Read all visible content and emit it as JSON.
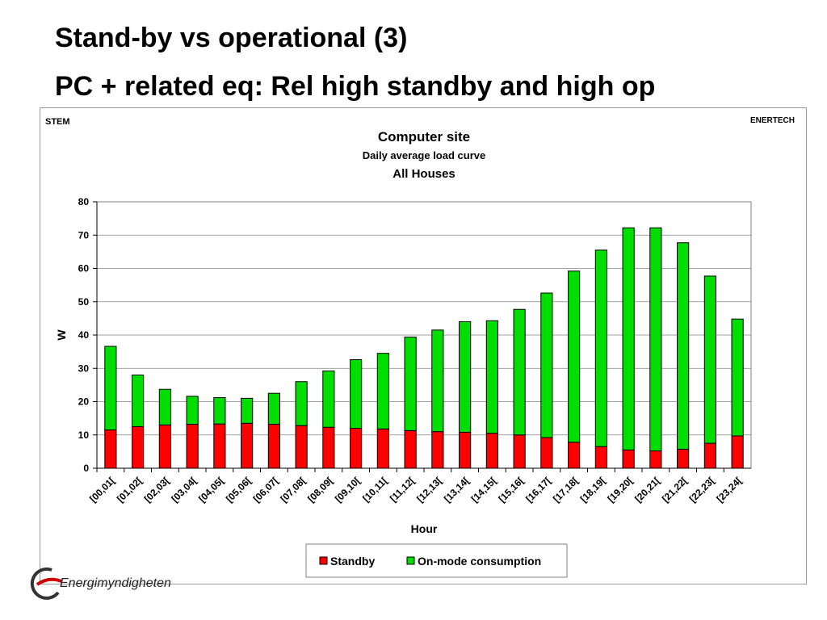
{
  "slide": {
    "title_line1": "Stand-by vs operational (3)",
    "title_line2": "PC + related eq: Rel high standby and high op"
  },
  "logo": {
    "text": "Energimyndigheten"
  },
  "chart_data": {
    "type": "bar",
    "stacked": true,
    "corner_left": "STEM",
    "corner_right": "ENERTECH",
    "title": "Computer site",
    "subtitle": "Daily average load curve",
    "subtitle2": "All Houses",
    "xlabel": "Hour",
    "ylabel": "W",
    "ylim": [
      0,
      80
    ],
    "yticks": [
      0,
      10,
      20,
      30,
      40,
      50,
      60,
      70,
      80
    ],
    "grid": true,
    "legend_position": "bottom",
    "categories": [
      "[00,01[",
      "[01,02[",
      "[02,03[",
      "[03,04[",
      "[04,05[",
      "[05,06[",
      "[06,07[",
      "[07,08[",
      "[08,09[",
      "[09,10[",
      "[10,11[",
      "[11,12[",
      "[12,13[",
      "[13,14[",
      "[14,15[",
      "[15,16[",
      "[16,17[",
      "[17,18[",
      "[18,19[",
      "[19,20[",
      "[20,21[",
      "[21,22[",
      "[22,23[",
      "[23,24["
    ],
    "series": [
      {
        "name": "Standby",
        "color": "#ff0000",
        "values": [
          11.5,
          12.5,
          13,
          13.2,
          13.3,
          13.5,
          13.2,
          12.8,
          12.3,
          12,
          11.8,
          11.3,
          11,
          10.8,
          10.5,
          10,
          9.2,
          7.8,
          6.5,
          5.5,
          5.2,
          5.7,
          7.5,
          9.7
        ]
      },
      {
        "name": "On-mode consumption",
        "color": "#00dd00",
        "values": [
          25.1,
          15.5,
          10.7,
          8.4,
          7.9,
          7.5,
          9.3,
          13.2,
          16.9,
          20.6,
          22.7,
          28.1,
          30.5,
          33.2,
          33.8,
          37.7,
          43.4,
          51.4,
          59.0,
          66.7,
          67.0,
          62.0,
          50.2,
          35.1
        ]
      }
    ]
  }
}
